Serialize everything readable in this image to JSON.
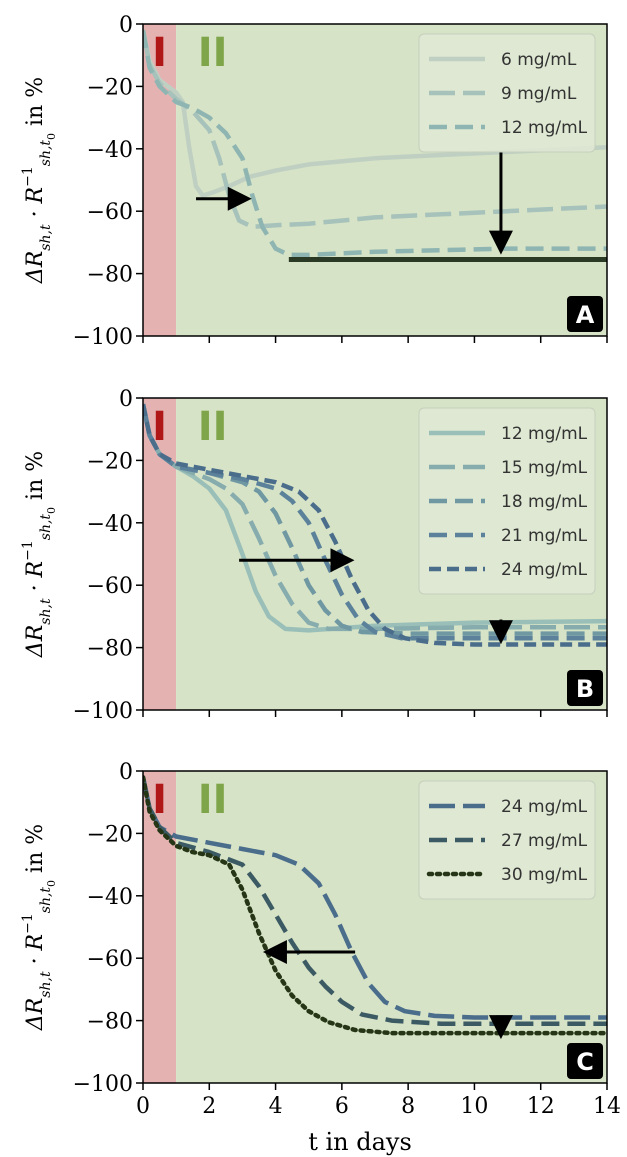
{
  "colors": {
    "region_I_bg": "#e5b2b2",
    "region_II_bg": "#d6e3c6",
    "region_I_label": "#b01818",
    "region_II_label": "#7fa54a",
    "arrow": "#000000",
    "badge_bg": "#000000"
  },
  "x_axis": {
    "label": "t in days",
    "ticks": [
      "0",
      "2",
      "4",
      "6",
      "8",
      "10",
      "12",
      "14"
    ]
  },
  "chart_data": [
    {
      "type": "line",
      "panel": "A",
      "ylabel": "ΔR_sh,t · R_sh,t0^-1 in %",
      "xlim": [
        0,
        14
      ],
      "ylim": [
        -100,
        0
      ],
      "yticks": [
        "0",
        "−20",
        "−40",
        "−60",
        "−80",
        "−100"
      ],
      "regions": [
        {
          "label": "I",
          "x": [
            0,
            1
          ]
        },
        {
          "label": "II",
          "x": [
            1,
            14
          ]
        }
      ],
      "legend": "top-right",
      "series": [
        {
          "name": "6 mg/mL",
          "color": "#bfd0c3",
          "dash": "solid",
          "points": [
            [
              0,
              -2
            ],
            [
              0.2,
              -12
            ],
            [
              0.5,
              -18
            ],
            [
              1.0,
              -22
            ],
            [
              1.2,
              -25
            ],
            [
              1.4,
              -40
            ],
            [
              1.6,
              -52
            ],
            [
              1.8,
              -55
            ],
            [
              2.1,
              -54
            ],
            [
              2.6,
              -52
            ],
            [
              3.2,
              -49
            ],
            [
              4,
              -47
            ],
            [
              5,
              -45
            ],
            [
              7,
              -43
            ],
            [
              9,
              -42
            ],
            [
              11,
              -41
            ],
            [
              14,
              -39.5
            ]
          ]
        },
        {
          "name": "9 mg/mL",
          "color": "#a6c2bb",
          "dash": "long",
          "points": [
            [
              0,
              -2
            ],
            [
              0.2,
              -13
            ],
            [
              0.5,
              -19
            ],
            [
              1.0,
              -24
            ],
            [
              1.5,
              -28
            ],
            [
              2.0,
              -34
            ],
            [
              2.3,
              -43
            ],
            [
              2.6,
              -55
            ],
            [
              2.9,
              -63
            ],
            [
              3.3,
              -65
            ],
            [
              4,
              -64.5
            ],
            [
              5,
              -64
            ],
            [
              7,
              -62
            ],
            [
              9,
              -61
            ],
            [
              11,
              -60
            ],
            [
              14,
              -58.5
            ]
          ]
        },
        {
          "name": "12 mg/mL",
          "color": "#8fb5b2",
          "dash": "medium",
          "points": [
            [
              0,
              -2
            ],
            [
              0.2,
              -14
            ],
            [
              0.5,
              -20
            ],
            [
              1.0,
              -25
            ],
            [
              1.5,
              -27
            ],
            [
              2.0,
              -30
            ],
            [
              2.5,
              -35
            ],
            [
              3.0,
              -43
            ],
            [
              3.3,
              -55
            ],
            [
              3.6,
              -65
            ],
            [
              4.0,
              -72
            ],
            [
              4.4,
              -74
            ],
            [
              5,
              -74
            ],
            [
              7,
              -73
            ],
            [
              9,
              -72.5
            ],
            [
              11,
              -72
            ],
            [
              14,
              -72
            ]
          ]
        }
      ],
      "reference_line": {
        "x": [
          4.4,
          14
        ],
        "y": -75.5,
        "color": "#2a3a24"
      },
      "arrows": [
        {
          "from": [
            1.6,
            -56
          ],
          "to": [
            3.1,
            -56
          ]
        },
        {
          "from": [
            10.8,
            -41
          ],
          "to": [
            10.8,
            -72
          ]
        }
      ],
      "badge": "A"
    },
    {
      "type": "line",
      "panel": "B",
      "ylabel": "ΔR_sh,t · R_sh,t0^-1 in %",
      "xlim": [
        0,
        14
      ],
      "ylim": [
        -100,
        0
      ],
      "yticks": [
        "0",
        "−20",
        "−40",
        "−60",
        "−80",
        "−100"
      ],
      "regions": [
        {
          "label": "I",
          "x": [
            0,
            1
          ]
        },
        {
          "label": "II",
          "x": [
            1,
            14
          ]
        }
      ],
      "legend": "top-right",
      "series": [
        {
          "name": "12 mg/mL",
          "color": "#9abfb8",
          "dash": "solid",
          "points": [
            [
              0,
              -2
            ],
            [
              0.2,
              -12
            ],
            [
              0.5,
              -18
            ],
            [
              1.0,
              -22
            ],
            [
              1.5,
              -25
            ],
            [
              2.0,
              -29
            ],
            [
              2.5,
              -36
            ],
            [
              3.0,
              -50
            ],
            [
              3.4,
              -62
            ],
            [
              3.8,
              -70
            ],
            [
              4.3,
              -74
            ],
            [
              5,
              -74.5
            ],
            [
              7,
              -73
            ],
            [
              10,
              -72
            ],
            [
              14,
              -71.5
            ]
          ]
        },
        {
          "name": "15 mg/mL",
          "color": "#86acae",
          "dash": "long",
          "points": [
            [
              0,
              -2
            ],
            [
              0.2,
              -12
            ],
            [
              0.5,
              -18
            ],
            [
              1.0,
              -22
            ],
            [
              1.5,
              -24
            ],
            [
              2.0,
              -26
            ],
            [
              2.5,
              -29
            ],
            [
              3.0,
              -34
            ],
            [
              3.5,
              -45
            ],
            [
              4.0,
              -57
            ],
            [
              4.5,
              -66
            ],
            [
              5.0,
              -72
            ],
            [
              5.6,
              -74
            ],
            [
              7,
              -74
            ],
            [
              10,
              -73.5
            ],
            [
              14,
              -73.5
            ]
          ]
        },
        {
          "name": "18 mg/mL",
          "color": "#7098a3",
          "dash": "medium",
          "points": [
            [
              0,
              -2
            ],
            [
              0.2,
              -12
            ],
            [
              0.5,
              -18
            ],
            [
              1.0,
              -22
            ],
            [
              2.0,
              -24
            ],
            [
              3.0,
              -27
            ],
            [
              3.5,
              -30
            ],
            [
              4.0,
              -37
            ],
            [
              4.5,
              -48
            ],
            [
              5.0,
              -60
            ],
            [
              5.5,
              -68
            ],
            [
              6.0,
              -73
            ],
            [
              6.6,
              -75
            ],
            [
              8,
              -75.5
            ],
            [
              10,
              -75.5
            ],
            [
              14,
              -75.5
            ]
          ]
        },
        {
          "name": "21 mg/mL",
          "color": "#5b829a",
          "dash": "medium",
          "points": [
            [
              0,
              -2
            ],
            [
              0.2,
              -12
            ],
            [
              0.5,
              -18
            ],
            [
              1.0,
              -22
            ],
            [
              2.0,
              -24
            ],
            [
              3.0,
              -26
            ],
            [
              4.0,
              -29
            ],
            [
              4.5,
              -33
            ],
            [
              5.0,
              -40
            ],
            [
              5.5,
              -52
            ],
            [
              6.0,
              -63
            ],
            [
              6.5,
              -71
            ],
            [
              7.0,
              -75
            ],
            [
              7.8,
              -77
            ],
            [
              10,
              -77
            ],
            [
              14,
              -77
            ]
          ]
        },
        {
          "name": "24 mg/mL",
          "color": "#4a6d8c",
          "dash": "short",
          "points": [
            [
              0,
              -2
            ],
            [
              0.2,
              -12
            ],
            [
              0.5,
              -18
            ],
            [
              1.0,
              -21
            ],
            [
              2.0,
              -23
            ],
            [
              3.0,
              -25
            ],
            [
              4.0,
              -27
            ],
            [
              4.7,
              -30
            ],
            [
              5.3,
              -36
            ],
            [
              5.8,
              -46
            ],
            [
              6.3,
              -58
            ],
            [
              6.8,
              -68
            ],
            [
              7.3,
              -74
            ],
            [
              7.9,
              -77
            ],
            [
              8.8,
              -78.5
            ],
            [
              10,
              -79
            ],
            [
              14,
              -79
            ]
          ]
        }
      ],
      "arrows": [
        {
          "from": [
            2.9,
            -52
          ],
          "to": [
            6.2,
            -52
          ]
        },
        {
          "from": [
            10.8,
            -71
          ],
          "to": [
            10.8,
            -77
          ]
        }
      ],
      "badge": "B"
    },
    {
      "type": "line",
      "panel": "C",
      "ylabel": "ΔR_sh,t · R_sh,t0^-1 in %",
      "xlim": [
        0,
        14
      ],
      "ylim": [
        -100,
        0
      ],
      "yticks": [
        "0",
        "−20",
        "−40",
        "−60",
        "−80",
        "−100"
      ],
      "regions": [
        {
          "label": "I",
          "x": [
            0,
            1
          ]
        },
        {
          "label": "II",
          "x": [
            1,
            14
          ]
        }
      ],
      "legend": "top-right",
      "series": [
        {
          "name": "24 mg/mL",
          "color": "#4a6d8c",
          "dash": "long",
          "points": [
            [
              0,
              -2
            ],
            [
              0.2,
              -12
            ],
            [
              0.5,
              -18
            ],
            [
              1.0,
              -21
            ],
            [
              2.0,
              -23
            ],
            [
              3.0,
              -25
            ],
            [
              4.0,
              -27
            ],
            [
              4.7,
              -30
            ],
            [
              5.3,
              -36
            ],
            [
              5.8,
              -46
            ],
            [
              6.3,
              -58
            ],
            [
              6.8,
              -68
            ],
            [
              7.3,
              -74
            ],
            [
              7.9,
              -77
            ],
            [
              8.8,
              -78.5
            ],
            [
              10,
              -79
            ],
            [
              14,
              -79
            ]
          ]
        },
        {
          "name": "27 mg/mL",
          "color": "#3b5a63",
          "dash": "medium",
          "points": [
            [
              0,
              -2
            ],
            [
              0.2,
              -12
            ],
            [
              0.5,
              -18
            ],
            [
              1.0,
              -23
            ],
            [
              2.0,
              -26
            ],
            [
              3.0,
              -30
            ],
            [
              3.5,
              -37
            ],
            [
              4.0,
              -46
            ],
            [
              4.5,
              -55
            ],
            [
              5.0,
              -63
            ],
            [
              5.5,
              -69
            ],
            [
              6.0,
              -74
            ],
            [
              6.6,
              -78
            ],
            [
              7.5,
              -80
            ],
            [
              9,
              -81
            ],
            [
              14,
              -81
            ]
          ]
        },
        {
          "name": "30 mg/mL",
          "color": "#253515",
          "dash": "dotted",
          "points": [
            [
              0,
              -2
            ],
            [
              0.2,
              -13
            ],
            [
              0.5,
              -19
            ],
            [
              1.0,
              -24
            ],
            [
              1.5,
              -26
            ],
            [
              2.0,
              -27
            ],
            [
              2.6,
              -30
            ],
            [
              3.0,
              -38
            ],
            [
              3.5,
              -52
            ],
            [
              4.0,
              -64
            ],
            [
              4.5,
              -72
            ],
            [
              5.0,
              -77
            ],
            [
              5.6,
              -80.5
            ],
            [
              6.4,
              -83
            ],
            [
              7.5,
              -84
            ],
            [
              10,
              -84
            ],
            [
              14,
              -84
            ]
          ]
        }
      ],
      "arrows": [
        {
          "from": [
            6.4,
            -58
          ],
          "to": [
            3.8,
            -58
          ]
        },
        {
          "from": [
            10.8,
            -79
          ],
          "to": [
            10.8,
            -84
          ]
        }
      ],
      "badge": "C"
    }
  ]
}
